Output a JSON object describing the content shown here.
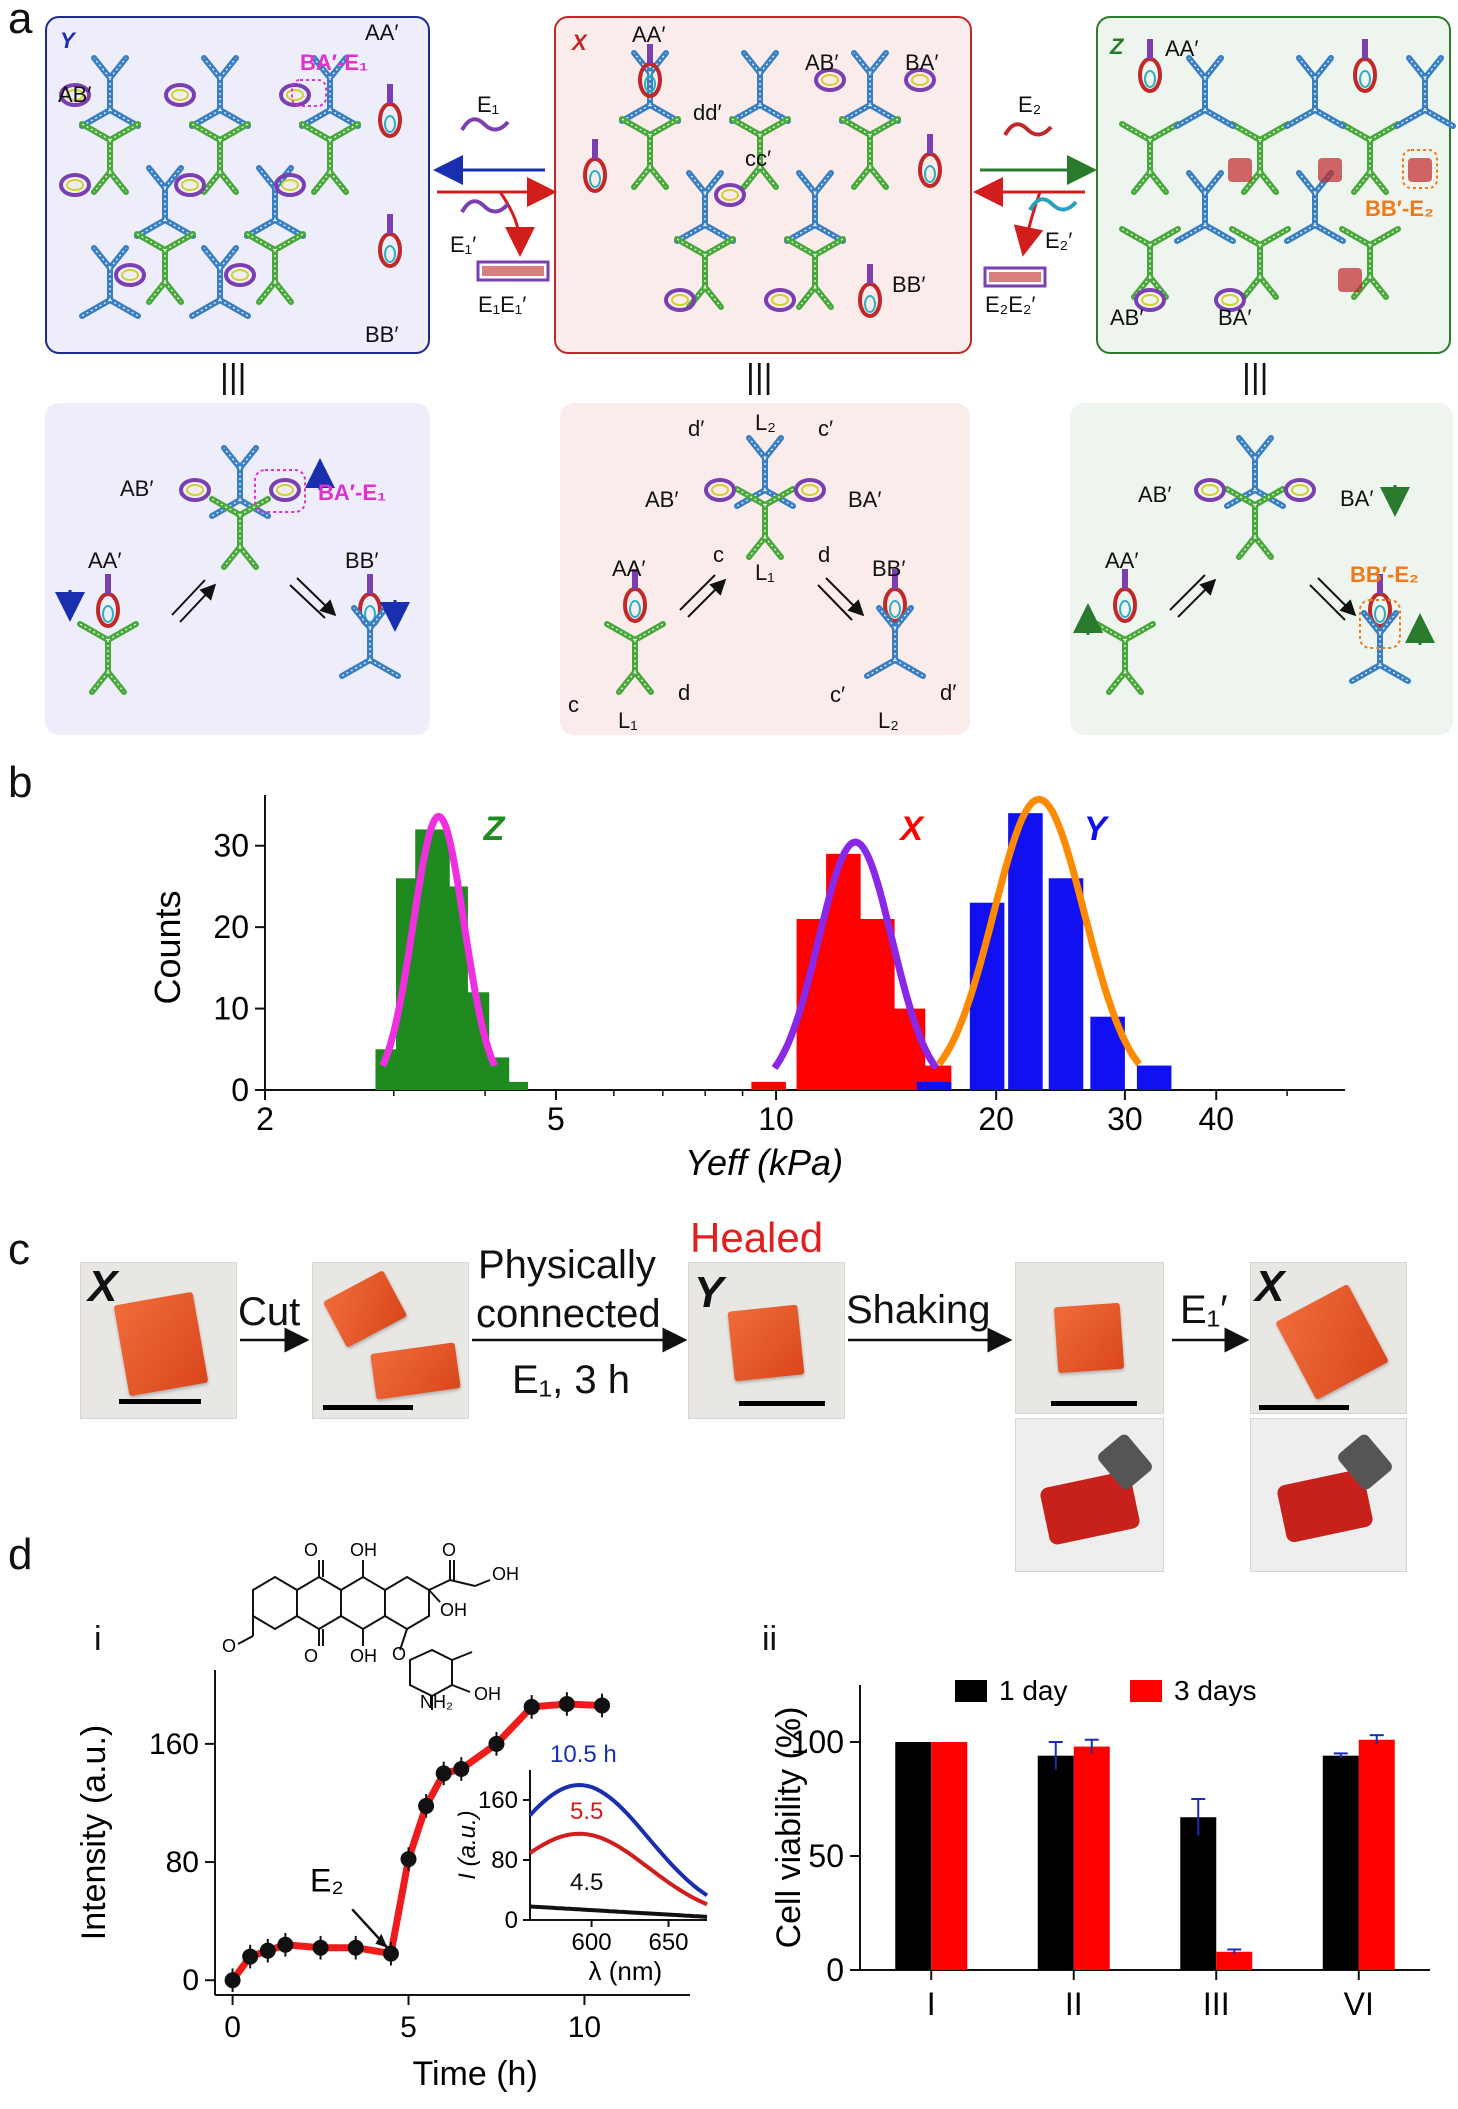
{
  "panels": {
    "a": "a",
    "b": "b",
    "c": "c",
    "d": "d"
  },
  "panel_a": {
    "top": {
      "Y": {
        "tag": "Y",
        "labels": {
          "ab": "AB′",
          "aa": "AA′",
          "ba_e1": "BA′-E₁",
          "bb": "BB′"
        }
      },
      "X": {
        "tag": "X",
        "labels": {
          "aa": "AA′",
          "ab": "AB′",
          "ba": "BA′",
          "dd": "dd′",
          "cc": "cc′",
          "bb": "BB′"
        }
      },
      "Z": {
        "tag": "Z",
        "labels": {
          "aa": "AA′",
          "bb_e2": "BB′-E₂",
          "ab": "AB′",
          "ba": "BA′"
        }
      }
    },
    "arrows": {
      "e1": "E₁",
      "e1p": "E₁′",
      "e1e1p": "E₁E₁′",
      "e2": "E₂",
      "e2p": "E₂′",
      "e2e2p": "E₂E₂′"
    },
    "equiv": "|||",
    "bottom": {
      "Y": {
        "ab": "AB′",
        "ba_e1": "BA′-E₁",
        "aa": "AA′",
        "bb": "BB′"
      },
      "X": {
        "d_prime": "d′",
        "l2": "L₂",
        "c_prime": "c′",
        "ab": "AB′",
        "ba": "BA′",
        "aa": "AA′",
        "c": "c",
        "l1": "L₁",
        "d": "d",
        "bb": "BB′",
        "c_l": "c",
        "l1_l": "L₁",
        "d_l": "d",
        "c_prime_r": "c′",
        "l2_r": "L₂",
        "d_prime_r": "d′"
      },
      "Z": {
        "ab": "AB′",
        "ba": "BA′",
        "aa": "AA′",
        "bb_e2": "BB′-E₂"
      }
    },
    "colors": {
      "Y_bg": "#eeeefa",
      "Y_border": "#1f2a8a",
      "X_bg": "#fbecec",
      "X_border": "#c0282a",
      "Z_bg": "#eef5ee",
      "Z_border": "#2d7a2d",
      "blue": "#1a2fb0",
      "red": "#d21d1d",
      "green": "#2a7a2a",
      "magenta": "#e030d0",
      "orange": "#f07a1a"
    }
  },
  "chart_data": [
    {
      "id": "b",
      "type": "bar",
      "xscale": "log",
      "xlabel": "Yeff (kPa)",
      "ylabel": "Counts",
      "xticks": [
        "2",
        "5",
        "10",
        "20",
        "30",
        "40"
      ],
      "yticks": [
        "0",
        "10",
        "20",
        "30"
      ],
      "ylim": [
        0,
        35
      ],
      "series": [
        {
          "name": "Z",
          "color": "#1f8a1f",
          "fit_color": "#f030e0",
          "bins": [
            [
              3.0,
              5
            ],
            [
              3.2,
              26
            ],
            [
              3.4,
              32
            ],
            [
              3.6,
              25
            ],
            [
              3.85,
              12
            ],
            [
              4.1,
              4
            ],
            [
              4.35,
              1
            ]
          ]
        },
        {
          "name": "X",
          "color": "#ff0000",
          "fit_color": "#8a28e8",
          "bins": [
            [
              9.8,
              1
            ],
            [
              11.3,
              21
            ],
            [
              12.4,
              29
            ],
            [
              13.8,
              21
            ],
            [
              15.2,
              10
            ],
            [
              16.5,
              3
            ]
          ]
        },
        {
          "name": "Y",
          "color": "#1010f0",
          "fit_color": "#ff8a00",
          "bins": [
            [
              16.5,
              1
            ],
            [
              19.5,
              23
            ],
            [
              22,
              34
            ],
            [
              25,
              26
            ],
            [
              28.5,
              9
            ],
            [
              33,
              3
            ]
          ]
        }
      ]
    },
    {
      "id": "d-i",
      "type": "scatter",
      "xlabel": "Time (h)",
      "ylabel": "Intensity (a.u.)",
      "xticks": [
        "0",
        "5",
        "10"
      ],
      "yticks": [
        "0",
        "80",
        "160"
      ],
      "xlim": [
        -0.5,
        13
      ],
      "ylim": [
        -10,
        210
      ],
      "points": [
        [
          0,
          0
        ],
        [
          0.5,
          16
        ],
        [
          1,
          20
        ],
        [
          1.5,
          24
        ],
        [
          2.5,
          22
        ],
        [
          3.5,
          22
        ],
        [
          4.5,
          18
        ],
        [
          5,
          82
        ],
        [
          5.5,
          118
        ],
        [
          6,
          140
        ],
        [
          6.5,
          143
        ],
        [
          7.5,
          160
        ],
        [
          8.5,
          185
        ],
        [
          9.5,
          187
        ],
        [
          10.5,
          186
        ]
      ],
      "annotation": "E₂",
      "inset": {
        "xlabel": "λ (nm)",
        "ylabel": "I (a.u.)",
        "xticks": [
          "600",
          "650"
        ],
        "yticks": [
          "0",
          "80",
          "160"
        ],
        "curves": [
          {
            "label": "10.5 h",
            "color": "#1a2fb0"
          },
          {
            "label": "5.5",
            "color": "#d21d1d"
          },
          {
            "label": "4.5",
            "color": "#111111"
          }
        ]
      }
    },
    {
      "id": "d-ii",
      "type": "bar",
      "ylabel": "Cell viability (%)",
      "categories": [
        "I",
        "II",
        "III",
        "VI"
      ],
      "yticks": [
        "0",
        "50",
        "100"
      ],
      "ylim": [
        0,
        125
      ],
      "series": [
        {
          "name": "1 day",
          "color": "#000000",
          "values": [
            100,
            94,
            67,
            94
          ],
          "err": [
            0,
            6,
            8,
            1
          ]
        },
        {
          "name": "3 days",
          "color": "#ff0000",
          "values": [
            100,
            98,
            8,
            101
          ],
          "err": [
            0,
            3,
            1,
            2
          ]
        }
      ]
    }
  ],
  "panel_c": {
    "labels": {
      "x1": "X",
      "cut": "Cut",
      "physically": "Physically",
      "connected": "connected",
      "e1_3h": "E₁, 3 h",
      "healed": "Healed",
      "y": "Y",
      "shaking": "Shaking",
      "e1p": "E₁′",
      "x2": "X"
    }
  },
  "panel_d": {
    "i": "i",
    "ii": "ii",
    "mol": {
      "oh1": "OH",
      "oh2": "OH",
      "oh3": "OH",
      "o_me": "O",
      "o1": "O",
      "o2": "O",
      "oh4": "OH",
      "nh2": "NH₂",
      "o_link": "O",
      "o_ring": "O",
      "oh_side": "OH"
    }
  }
}
